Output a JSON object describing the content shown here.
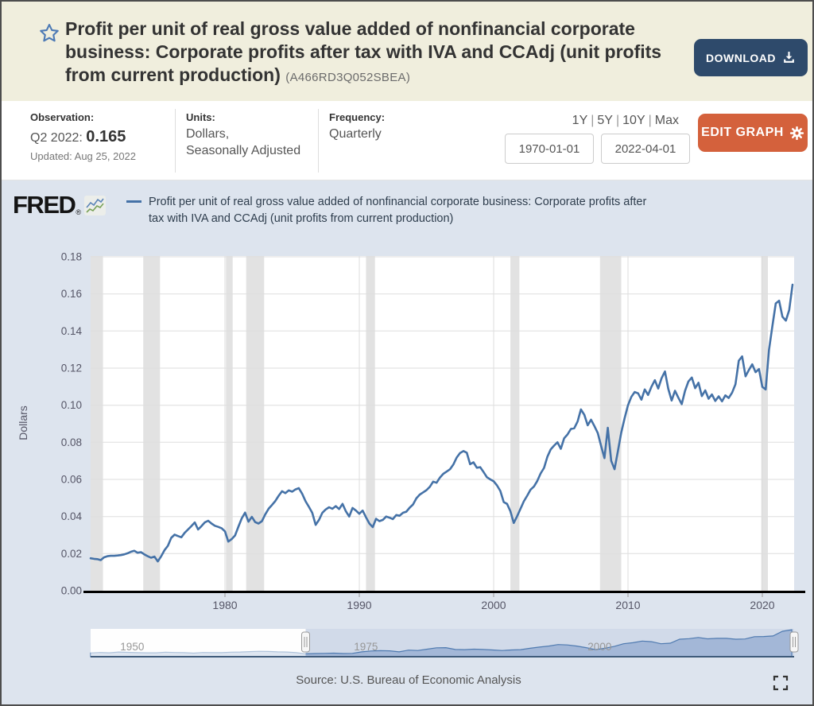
{
  "header": {
    "title": "Profit per unit of real gross value added of nonfinancial corporate business: Corporate profits after tax with IVA and CCAdj (unit profits from current production)",
    "series_id": "(A466RD3Q052SBEA)",
    "download_label": "DOWNLOAD",
    "accent_navy": "#2e4a6b",
    "header_bg": "#f0eedd"
  },
  "info_bar": {
    "observation": {
      "label": "Observation:",
      "period": "Q2 2022:",
      "value": "0.165",
      "updated": "Updated: Aug 25, 2022"
    },
    "units": {
      "label": "Units:",
      "line1": "Dollars,",
      "line2": "Seasonally Adjusted"
    },
    "frequency": {
      "label": "Frequency:",
      "value": "Quarterly"
    },
    "range_links": {
      "y1": "1Y",
      "y5": "5Y",
      "y10": "10Y",
      "max": "Max"
    },
    "date_start": "1970-01-01",
    "date_end": "2022-04-01",
    "edit_graph_label": "EDIT GRAPH",
    "accent_orange": "#d4613c"
  },
  "chart_area": {
    "logo_text": "FRED",
    "legend_label": "Profit per unit of real gross value added of nonfinancial corporate business: Corporate profits after tax with IVA and CCAdj (unit profits from current production)",
    "source": "Source: U.S. Bureau of Economic Analysis",
    "bg": "#dde4ee"
  },
  "chart_data": {
    "type": "line",
    "title": "Profit per unit of real gross value added of nonfinancial corporate business: Corporate profits after tax with IVA and CCAdj (unit profits from current production)",
    "ylabel": "Dollars",
    "ylim": [
      0,
      0.18
    ],
    "ytick_step": 0.02,
    "xticks": [
      1980,
      1990,
      2000,
      2010,
      2020
    ],
    "grid": true,
    "legend_position": "top",
    "line_color": "#4572a7",
    "recession_color": "#e2e2e2",
    "x_start": 1970.0,
    "x_step": 0.25,
    "x_end": 2022.25,
    "values": [
      0.0175,
      0.0172,
      0.017,
      0.0165,
      0.018,
      0.0186,
      0.0188,
      0.0188,
      0.019,
      0.0192,
      0.0196,
      0.0202,
      0.021,
      0.0215,
      0.0205,
      0.0208,
      0.0196,
      0.0186,
      0.0178,
      0.0184,
      0.0158,
      0.0185,
      0.0218,
      0.0242,
      0.0285,
      0.0302,
      0.0295,
      0.0288,
      0.0312,
      0.033,
      0.0348,
      0.0368,
      0.033,
      0.0348,
      0.0368,
      0.0377,
      0.0362,
      0.035,
      0.0344,
      0.0337,
      0.032,
      0.0265,
      0.0278,
      0.0298,
      0.0345,
      0.039,
      0.0421,
      0.0372,
      0.0398,
      0.037,
      0.0362,
      0.0375,
      0.0412,
      0.0442,
      0.0462,
      0.0484,
      0.0512,
      0.0536,
      0.0526,
      0.0541,
      0.0534,
      0.0546,
      0.0553,
      0.0522,
      0.0482,
      0.0452,
      0.042,
      0.0355,
      0.0382,
      0.042,
      0.0438,
      0.045,
      0.0442,
      0.0456,
      0.044,
      0.0468,
      0.0428,
      0.04,
      0.0446,
      0.0432,
      0.0415,
      0.0432,
      0.0396,
      0.0362,
      0.0343,
      0.0388,
      0.0375,
      0.0382,
      0.04,
      0.0394,
      0.0386,
      0.0408,
      0.0404,
      0.042,
      0.0426,
      0.0448,
      0.0465,
      0.0498,
      0.0518,
      0.053,
      0.0542,
      0.056,
      0.0588,
      0.0582,
      0.061,
      0.063,
      0.0642,
      0.0655,
      0.068,
      0.0718,
      0.0742,
      0.0753,
      0.0744,
      0.0682,
      0.0692,
      0.0663,
      0.0666,
      0.064,
      0.0612,
      0.06,
      0.059,
      0.0568,
      0.0538,
      0.0478,
      0.0468,
      0.0428,
      0.0365,
      0.0402,
      0.0442,
      0.0482,
      0.0512,
      0.0545,
      0.0562,
      0.0592,
      0.0632,
      0.0662,
      0.0722,
      0.0762,
      0.0782,
      0.08,
      0.0765,
      0.0822,
      0.0842,
      0.0872,
      0.0876,
      0.0912,
      0.0977,
      0.0948,
      0.0892,
      0.0922,
      0.0888,
      0.085,
      0.078,
      0.0715,
      0.0878,
      0.07,
      0.0655,
      0.0752,
      0.0852,
      0.0931,
      0.1,
      0.1045,
      0.1071,
      0.1064,
      0.103,
      0.1085,
      0.1055,
      0.11,
      0.1135,
      0.109,
      0.1145,
      0.1182,
      0.1088,
      0.1025,
      0.1078,
      0.104,
      0.1006,
      0.1078,
      0.1128,
      0.1149,
      0.1092,
      0.1121,
      0.1049,
      0.108,
      0.1035,
      0.1058,
      0.1023,
      0.1048,
      0.1021,
      0.1053,
      0.1039,
      0.1068,
      0.1113,
      0.124,
      0.1263,
      0.1156,
      0.119,
      0.122,
      0.1178,
      0.1195,
      0.1099,
      0.1085,
      0.1299,
      0.1428,
      0.1549,
      0.1563,
      0.1477,
      0.1456,
      0.1513,
      0.165
    ],
    "recessions": [
      [
        1970.0,
        1970.92
      ],
      [
        1973.92,
        1975.17
      ],
      [
        1980.08,
        1980.58
      ],
      [
        1981.58,
        1982.92
      ],
      [
        1990.5,
        1991.17
      ],
      [
        2001.25,
        2001.92
      ],
      [
        2007.92,
        2009.5
      ],
      [
        2019.92,
        2020.42
      ]
    ],
    "navigator": {
      "x_start": 1947,
      "x_step": 1,
      "tick_labels": [
        1950,
        1975,
        2000
      ],
      "selection": [
        1970.0,
        2022.25
      ],
      "values": [
        0.022,
        0.025,
        0.023,
        0.028,
        0.026,
        0.024,
        0.023,
        0.023,
        0.027,
        0.025,
        0.024,
        0.021,
        0.025,
        0.024,
        0.024,
        0.027,
        0.028,
        0.03,
        0.032,
        0.031,
        0.029,
        0.028,
        0.024,
        0.017,
        0.019,
        0.02,
        0.021,
        0.019,
        0.02,
        0.029,
        0.034,
        0.036,
        0.035,
        0.029,
        0.039,
        0.037,
        0.045,
        0.053,
        0.054,
        0.043,
        0.042,
        0.045,
        0.043,
        0.04,
        0.037,
        0.04,
        0.042,
        0.05,
        0.057,
        0.063,
        0.072,
        0.07,
        0.063,
        0.054,
        0.042,
        0.05,
        0.061,
        0.077,
        0.083,
        0.093,
        0.089,
        0.077,
        0.08,
        0.104,
        0.107,
        0.114,
        0.106,
        0.109,
        0.109,
        0.104,
        0.105,
        0.119,
        0.12,
        0.123,
        0.151,
        0.16
      ]
    }
  }
}
